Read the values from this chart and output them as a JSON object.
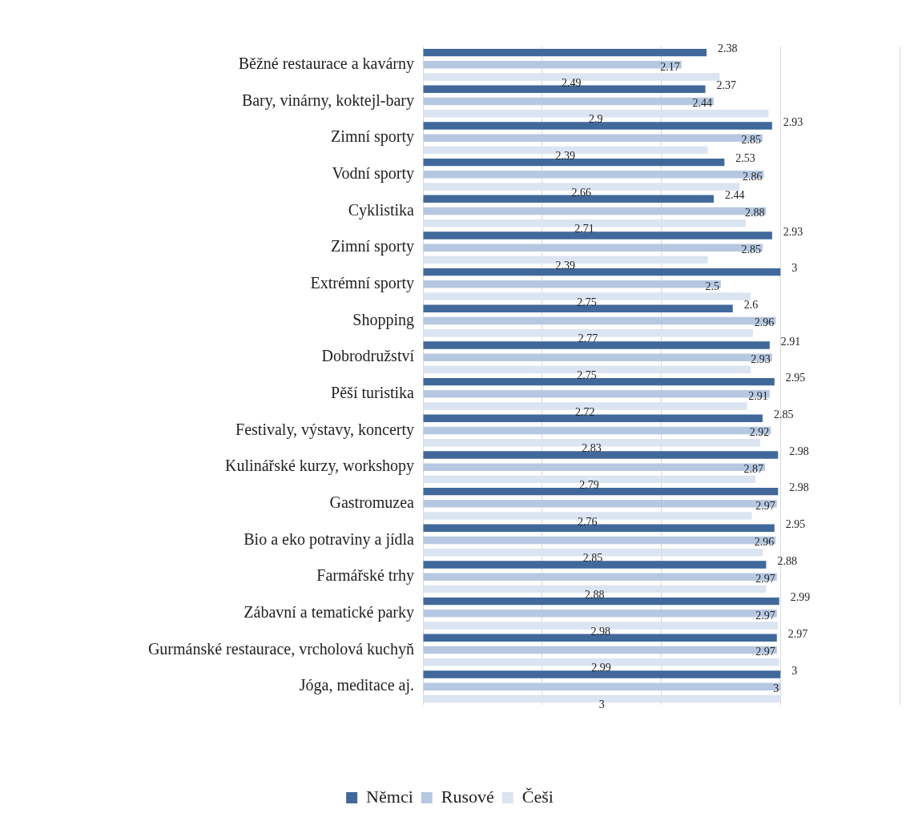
{
  "chart_data": {
    "type": "bar",
    "orientation": "horizontal",
    "categories": [
      "Běžné restaurace a kavárny",
      "Bary, vinárny, koktejl-bary",
      "Zimní sporty",
      "Vodní sporty",
      "Cyklistika",
      "Zimní sporty",
      "Extrémní sporty",
      "Shopping",
      "Dobrodružství",
      "Pěší turistika",
      "Festivaly, výstavy, koncerty",
      "Kulinářské kurzy, workshopy",
      "Gastromuzea",
      "Bio a eko potraviny a jídla",
      "Farmářské trhy",
      "Zábavní a tematické parky",
      "Gurmánské restaurace, vrcholová kuchyň",
      "Jóga, meditace aj."
    ],
    "series": [
      {
        "name": "Němci",
        "color": "#41689a",
        "values": [
          2.38,
          2.37,
          2.93,
          2.53,
          2.44,
          2.93,
          3,
          2.6,
          2.91,
          2.95,
          2.85,
          2.98,
          2.98,
          2.95,
          2.88,
          2.99,
          2.97,
          3
        ]
      },
      {
        "name": "Rusové",
        "color": "#b6c8e1",
        "values": [
          2.17,
          2.44,
          2.85,
          2.86,
          2.88,
          2.85,
          2.5,
          2.96,
          2.93,
          2.91,
          2.92,
          2.87,
          2.97,
          2.96,
          2.97,
          2.97,
          2.97,
          3
        ]
      },
      {
        "name": "Češi",
        "color": "#dbe4f1",
        "values": [
          2.49,
          2.9,
          2.39,
          2.66,
          2.71,
          2.39,
          2.75,
          2.77,
          2.75,
          2.72,
          2.83,
          2.79,
          2.76,
          2.85,
          2.88,
          2.98,
          2.99,
          3
        ]
      }
    ],
    "xlim": [
      0,
      4
    ],
    "xticks": [
      {
        "value": 0,
        "label": null
      },
      {
        "value": 1,
        "label": null
      },
      {
        "value": 2,
        "label": null
      },
      {
        "value": 3,
        "label": null
      },
      {
        "value": 4,
        "label": null
      }
    ],
    "grid": "x",
    "tick_labels": "y",
    "data_labels": true,
    "legend": "bottom"
  }
}
